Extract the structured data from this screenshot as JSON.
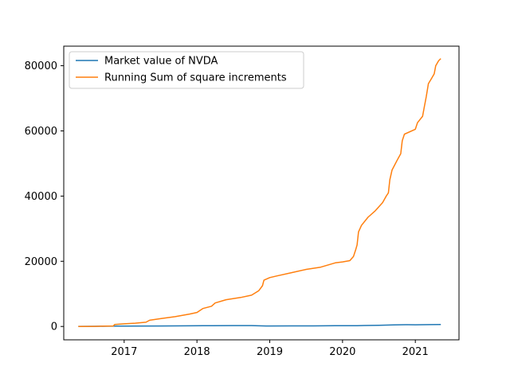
{
  "chart_data": {
    "type": "line",
    "title": "",
    "xlabel": "",
    "ylabel": "",
    "xlim": [
      2016.17,
      2021.6
    ],
    "ylim": [
      -4100,
      86000
    ],
    "x_ticks": [
      2017,
      2018,
      2019,
      2020,
      2021
    ],
    "x_tick_labels": [
      "2017",
      "2018",
      "2019",
      "2020",
      "2021"
    ],
    "y_ticks": [
      0,
      20000,
      40000,
      60000,
      80000
    ],
    "y_tick_labels": [
      "0",
      "20000",
      "40000",
      "60000",
      "80000"
    ],
    "grid": false,
    "legend_position": "top-left",
    "series": [
      {
        "name": "Market value of NVDA",
        "color": "#1f77b4",
        "points": [
          [
            2016.37,
            35
          ],
          [
            2016.6,
            50
          ],
          [
            2016.9,
            90
          ],
          [
            2017.0,
            100
          ],
          [
            2017.5,
            150
          ],
          [
            2017.9,
            200
          ],
          [
            2018.2,
            250
          ],
          [
            2018.5,
            260
          ],
          [
            2018.75,
            270
          ],
          [
            2018.95,
            150
          ],
          [
            2019.0,
            140
          ],
          [
            2019.3,
            165
          ],
          [
            2019.6,
            170
          ],
          [
            2019.9,
            230
          ],
          [
            2020.0,
            240
          ],
          [
            2020.2,
            250
          ],
          [
            2020.3,
            300
          ],
          [
            2020.5,
            380
          ],
          [
            2020.7,
            500
          ],
          [
            2020.9,
            540
          ],
          [
            2021.0,
            520
          ],
          [
            2021.2,
            560
          ],
          [
            2021.35,
            600
          ]
        ]
      },
      {
        "name": "Running Sum of square increments",
        "color": "#ff7f0e",
        "points": [
          [
            2016.37,
            0
          ],
          [
            2016.6,
            30
          ],
          [
            2016.85,
            150
          ],
          [
            2016.87,
            600
          ],
          [
            2017.0,
            800
          ],
          [
            2017.15,
            1000
          ],
          [
            2017.3,
            1300
          ],
          [
            2017.35,
            1900
          ],
          [
            2017.5,
            2400
          ],
          [
            2017.7,
            3000
          ],
          [
            2017.9,
            3800
          ],
          [
            2018.0,
            4300
          ],
          [
            2018.08,
            5500
          ],
          [
            2018.2,
            6200
          ],
          [
            2018.25,
            7200
          ],
          [
            2018.4,
            8200
          ],
          [
            2018.6,
            8900
          ],
          [
            2018.75,
            9600
          ],
          [
            2018.85,
            11000
          ],
          [
            2018.9,
            12500
          ],
          [
            2018.92,
            14200
          ],
          [
            2019.0,
            15000
          ],
          [
            2019.1,
            15500
          ],
          [
            2019.3,
            16500
          ],
          [
            2019.5,
            17500
          ],
          [
            2019.7,
            18200
          ],
          [
            2019.9,
            19500
          ],
          [
            2020.0,
            19800
          ],
          [
            2020.1,
            20200
          ],
          [
            2020.15,
            21500
          ],
          [
            2020.18,
            23500
          ],
          [
            2020.2,
            25000
          ],
          [
            2020.22,
            29000
          ],
          [
            2020.26,
            31000
          ],
          [
            2020.35,
            33500
          ],
          [
            2020.45,
            35500
          ],
          [
            2020.55,
            38000
          ],
          [
            2020.6,
            40000
          ],
          [
            2020.63,
            41000
          ],
          [
            2020.65,
            45000
          ],
          [
            2020.68,
            48000
          ],
          [
            2020.75,
            51000
          ],
          [
            2020.8,
            53000
          ],
          [
            2020.82,
            57000
          ],
          [
            2020.85,
            59000
          ],
          [
            2021.0,
            60500
          ],
          [
            2021.03,
            62500
          ],
          [
            2021.1,
            64500
          ],
          [
            2021.12,
            67000
          ],
          [
            2021.15,
            70500
          ],
          [
            2021.18,
            74500
          ],
          [
            2021.22,
            76000
          ],
          [
            2021.26,
            77500
          ],
          [
            2021.28,
            80000
          ],
          [
            2021.32,
            81500
          ],
          [
            2021.35,
            82200
          ]
        ]
      }
    ]
  }
}
